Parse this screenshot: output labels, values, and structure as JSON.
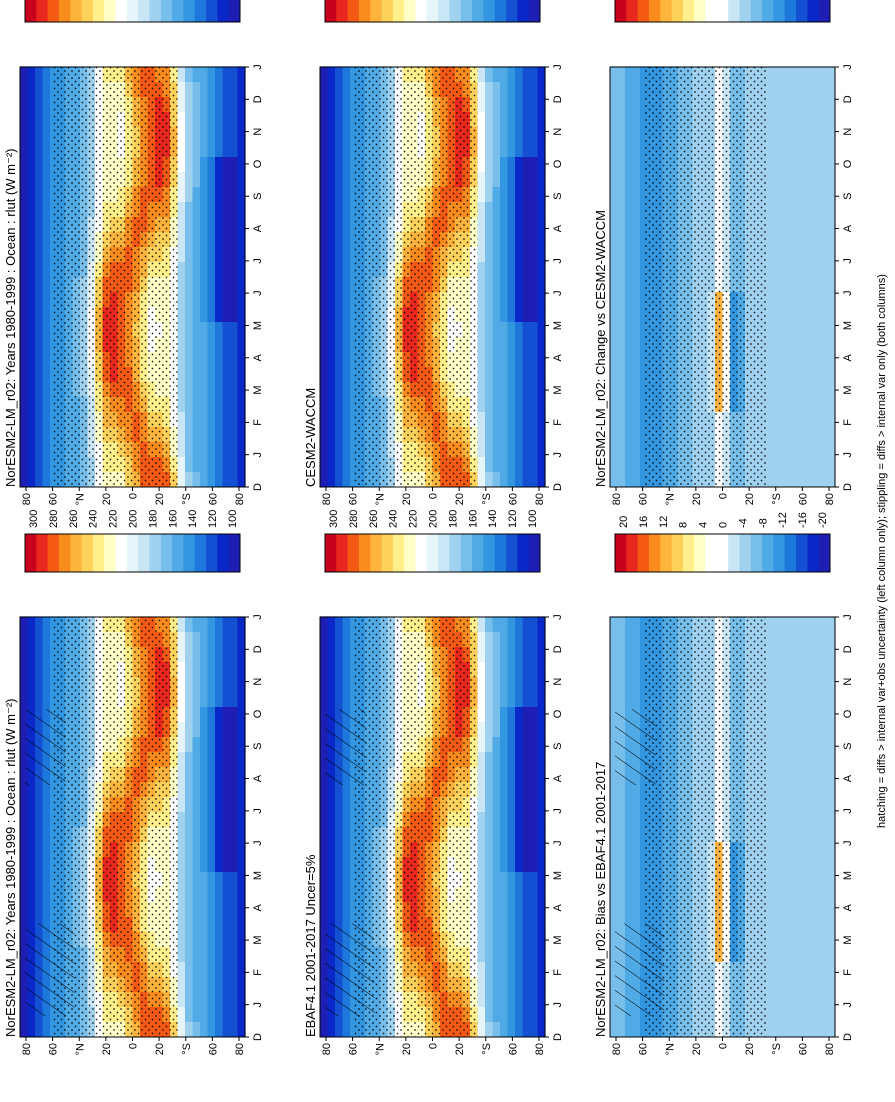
{
  "caption": "hatching = diffs > internal var+obs uncertainty (left column only); stippling = diffs > internal var only (both columns)",
  "month_ticks": [
    "D",
    "J",
    "F",
    "M",
    "A",
    "M",
    "J",
    "J",
    "A",
    "S",
    "O",
    "N",
    "D",
    "J"
  ],
  "lat_ticks": [
    "80",
    "60",
    "°N",
    "20",
    "0",
    "20",
    "°S",
    "60",
    "80"
  ],
  "colorbar_abs": {
    "labels": [
      "300",
      "280",
      "260",
      "240",
      "220",
      "200",
      "180",
      "160",
      "140",
      "120",
      "100"
    ],
    "colors": [
      "#c8001e",
      "#e8281e",
      "#f45a14",
      "#fa8c1e",
      "#fcb43c",
      "#fdd25a",
      "#fff08c",
      "#ffffc8",
      "#ffffff",
      "#e6f5fa",
      "#c8e6f5",
      "#a0d2f0",
      "#78beeb",
      "#50aae6",
      "#3296e1",
      "#1e78dc",
      "#1450d2",
      "#0a28c8",
      "#1e1eb4"
    ]
  },
  "colorbar_diff": {
    "labels": [
      "20",
      "16",
      "12",
      "8",
      "4",
      "0",
      "-4",
      "-8",
      "-12",
      "-16",
      "-20"
    ],
    "colors": [
      "#c8001e",
      "#e8281e",
      "#f45a14",
      "#fa8c1e",
      "#fcb43c",
      "#fdd25a",
      "#fff08c",
      "#ffffc8",
      "#ffffff",
      "#ffffff",
      "#c8e6f5",
      "#a0d2f0",
      "#78beeb",
      "#50aae6",
      "#3296e1",
      "#1e78dc",
      "#1450d2",
      "#0a28c8",
      "#1e1eb4"
    ]
  },
  "chart_data": [
    {
      "type": "heatmap",
      "title": "NorESM2-LM_r02: Years 1980-1999 : Ocean : rlut (W m⁻²)",
      "x": "month",
      "y": "latitude",
      "zlim": [
        100,
        300
      ]
    },
    {
      "type": "heatmap",
      "title": "EBAF4.1 2001-2017 Uncer=5%",
      "x": "month",
      "y": "latitude",
      "zlim": [
        100,
        300
      ]
    },
    {
      "type": "heatmap",
      "title": "NorESM2-LM_r02: Bias vs EBAF4.1 2001-2017",
      "x": "month",
      "y": "latitude",
      "zlim": [
        -20,
        20
      ]
    },
    {
      "type": "heatmap",
      "title": "NorESM2-LM_r02: Years 1980-1999 : Ocean : rlut (W m⁻²)",
      "x": "month",
      "y": "latitude",
      "zlim": [
        100,
        300
      ]
    },
    {
      "type": "heatmap",
      "title": "CESM2-WACCM",
      "x": "month",
      "y": "latitude",
      "zlim": [
        100,
        300
      ]
    },
    {
      "type": "heatmap",
      "title": "NorESM2-LM_r02: Change vs CESM2-WACCM",
      "x": "month",
      "y": "latitude",
      "zlim": [
        -20,
        20
      ]
    }
  ]
}
